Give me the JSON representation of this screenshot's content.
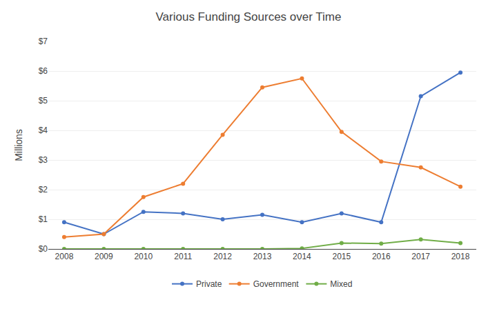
{
  "chart_data": {
    "type": "line",
    "title": "Various Funding Sources over Time",
    "ylabel": "Millions",
    "x": [
      2008,
      2009,
      2010,
      2011,
      2012,
      2013,
      2014,
      2015,
      2016,
      2017,
      2018
    ],
    "series": [
      {
        "name": "Private",
        "color": "#4472c4",
        "values": [
          0.9,
          0.5,
          1.25,
          1.2,
          1.0,
          1.15,
          0.9,
          1.2,
          0.9,
          5.15,
          5.95
        ]
      },
      {
        "name": "Government",
        "color": "#ed7d31",
        "values": [
          0.4,
          0.5,
          1.75,
          2.2,
          3.85,
          5.45,
          5.75,
          3.95,
          2.95,
          2.75,
          2.1
        ]
      },
      {
        "name": "Mixed",
        "color": "#70ad47",
        "values": [
          0.0,
          0.0,
          0.0,
          0.0,
          0.0,
          0.0,
          0.02,
          0.2,
          0.18,
          0.32,
          0.2
        ]
      }
    ],
    "xlim": [
      2007.6,
      2018.4
    ],
    "xticks": [
      2008,
      2009,
      2010,
      2011,
      2012,
      2013,
      2014,
      2015,
      2016,
      2017,
      2018
    ],
    "ylim": [
      0,
      7
    ],
    "yticks": [
      {
        "value": 0,
        "label": "$0"
      },
      {
        "value": 1,
        "label": "$1"
      },
      {
        "value": 2,
        "label": "$2"
      },
      {
        "value": 3,
        "label": "$3"
      },
      {
        "value": 4,
        "label": "$4"
      },
      {
        "value": 5,
        "label": "$5"
      },
      {
        "value": 6,
        "label": "$6"
      },
      {
        "value": 7,
        "label": "$7"
      }
    ],
    "grid": true,
    "legend": "bottom",
    "marker": "circle"
  }
}
